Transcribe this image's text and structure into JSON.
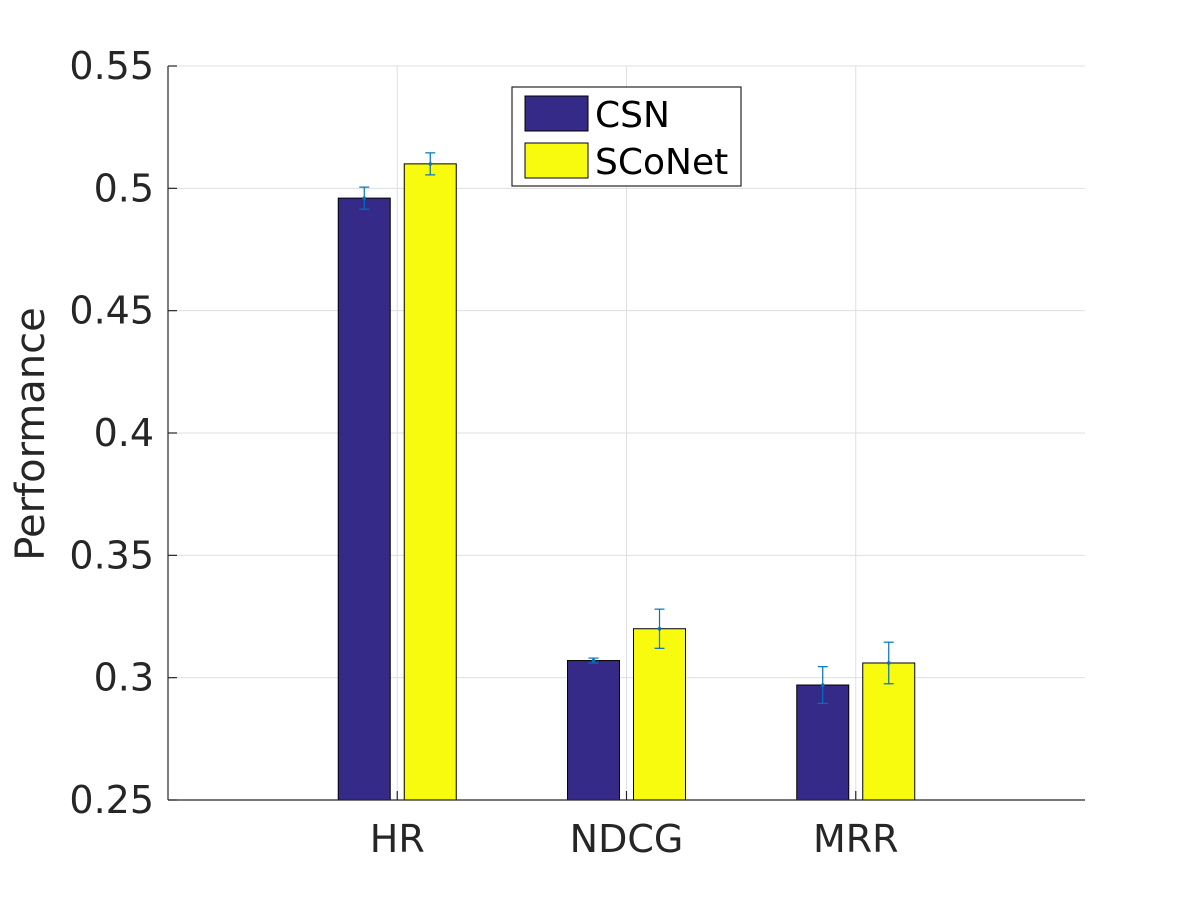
{
  "chart_data": {
    "type": "bar",
    "xlabel": "",
    "ylabel": "Performance",
    "categories": [
      "HR",
      "NDCG",
      "MRR"
    ],
    "ylim": [
      0.25,
      0.55
    ],
    "yticks": [
      0.25,
      0.3,
      0.35,
      0.4,
      0.45,
      0.5,
      0.55
    ],
    "ytick_labels": [
      "0.25",
      "0.3",
      "0.35",
      "0.4",
      "0.45",
      "0.5",
      "0.55"
    ],
    "grid": true,
    "legend_position": "top-center",
    "series": [
      {
        "name": "CSN",
        "color": "#352a87",
        "values": [
          0.496,
          0.307,
          0.297
        ],
        "errors": [
          0.0045,
          0.001,
          0.0075
        ]
      },
      {
        "name": "SCoNet",
        "color": "#f9fb0e",
        "values": [
          0.51,
          0.32,
          0.306
        ],
        "errors": [
          0.0045,
          0.008,
          0.0085
        ]
      }
    ],
    "error_bar_color": "#0072bd"
  }
}
